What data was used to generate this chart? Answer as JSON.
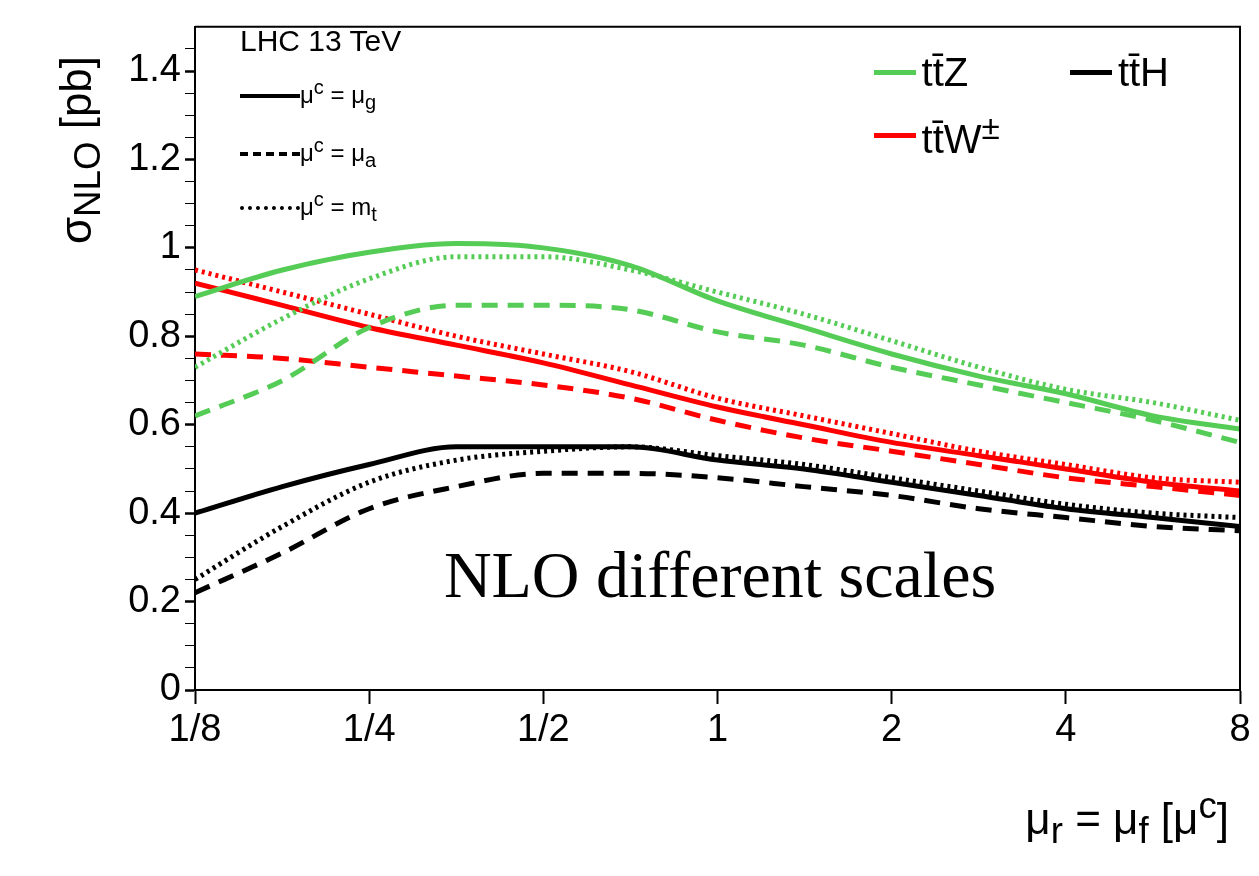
{
  "chart_data": {
    "type": "line",
    "ylabel": "σ$_{NLO}$ [pb]",
    "xlabel": "μ$_{r}$ = μ$_{f}$ [μ$^{c}$]",
    "annotations": [
      "LHC 13 TeV",
      "μ$^{c}$ = μ$_{g}$",
      "μ$^{c}$ = μ$_{a}$",
      "μ$^{c}$ = m$_{t}$",
      "NLO different scales"
    ],
    "log": "x",
    "xlim": [
      0.125,
      8
    ],
    "ylim": [
      0,
      1.5
    ],
    "xticks": [
      {
        "value": 0.125,
        "label": "1/8"
      },
      {
        "value": 0.25,
        "label": "1/4"
      },
      {
        "value": 0.5,
        "label": "1/2"
      },
      1,
      2,
      4,
      8
    ],
    "yticks": [
      0,
      {
        "value": 0.05,
        "label": null
      },
      {
        "value": 0.1,
        "label": null
      },
      {
        "value": 0.15,
        "label": null
      },
      0.2,
      {
        "value": 0.25,
        "label": null
      },
      {
        "value": 0.3,
        "label": null
      },
      {
        "value": 0.35,
        "label": null
      },
      0.4,
      {
        "value": 0.45,
        "label": null
      },
      {
        "value": 0.5,
        "label": null
      },
      {
        "value": 0.55,
        "label": null
      },
      0.6,
      {
        "value": 0.65,
        "label": null
      },
      {
        "value": 0.7,
        "label": null
      },
      {
        "value": 0.75,
        "label": null
      },
      0.8,
      {
        "value": 0.85,
        "label": null
      },
      {
        "value": 0.9,
        "label": null
      },
      {
        "value": 0.95,
        "label": null
      },
      1,
      {
        "value": 1.05,
        "label": null
      },
      {
        "value": 1.1,
        "label": null
      },
      {
        "value": 1.15,
        "label": null
      },
      1.2,
      {
        "value": 1.25,
        "label": null
      },
      {
        "value": 1.3,
        "label": null
      },
      {
        "value": 1.35,
        "label": null
      },
      1.4,
      {
        "value": 1.45,
        "label": null
      }
    ],
    "grid": false,
    "legend": "top right",
    "marker": "none",
    "x": [
      0.125,
      0.177,
      0.25,
      0.354,
      0.5,
      0.707,
      1,
      1.41,
      2,
      2.83,
      4,
      5.66,
      8
    ],
    "series": [
      {
        "name": "tt̄Z",
        "color": "#55cc55",
        "line_style": "solid",
        "values": [
          0.89,
          0.95,
          0.99,
          1.01,
          1.0,
          0.96,
          0.88,
          0.82,
          0.76,
          0.71,
          0.67,
          0.62,
          0.59
        ]
      },
      {
        "color": "#55cc55",
        "line_style": "dashed",
        "values": [
          0.62,
          0.7,
          0.82,
          0.87,
          0.87,
          0.86,
          0.81,
          0.78,
          0.73,
          0.69,
          0.65,
          0.61,
          0.56
        ]
      },
      {
        "color": "#55cc55",
        "line_style": "dotted",
        "values": [
          0.73,
          0.84,
          0.93,
          0.98,
          0.98,
          0.95,
          0.9,
          0.85,
          0.79,
          0.73,
          0.68,
          0.65,
          0.61
        ]
      },
      {
        "name": "tt̄W$^{±}$",
        "color": "#ff0000",
        "line_style": "solid",
        "values": [
          0.92,
          0.87,
          0.82,
          0.78,
          0.74,
          0.69,
          0.64,
          0.6,
          0.56,
          0.53,
          0.5,
          0.47,
          0.45
        ]
      },
      {
        "color": "#ff0000",
        "line_style": "dashed",
        "values": [
          0.76,
          0.75,
          0.73,
          0.71,
          0.69,
          0.66,
          0.61,
          0.57,
          0.54,
          0.51,
          0.48,
          0.46,
          0.44
        ]
      },
      {
        "color": "#ff0000",
        "line_style": "dotted",
        "values": [
          0.95,
          0.9,
          0.85,
          0.8,
          0.76,
          0.72,
          0.66,
          0.62,
          0.58,
          0.54,
          0.51,
          0.48,
          0.47
        ]
      },
      {
        "name": "tt̄H",
        "color": "#000000",
        "line_style": "solid",
        "values": [
          0.4,
          0.46,
          0.51,
          0.55,
          0.55,
          0.55,
          0.52,
          0.5,
          0.47,
          0.44,
          0.41,
          0.39,
          0.37
        ]
      },
      {
        "color": "#000000",
        "line_style": "dashed",
        "values": [
          0.22,
          0.31,
          0.41,
          0.46,
          0.49,
          0.49,
          0.48,
          0.46,
          0.44,
          0.41,
          0.39,
          0.37,
          0.36
        ]
      },
      {
        "color": "#000000",
        "line_style": "dotted",
        "values": [
          0.25,
          0.37,
          0.47,
          0.52,
          0.54,
          0.55,
          0.53,
          0.51,
          0.48,
          0.45,
          0.42,
          0.4,
          0.39
        ]
      }
    ]
  }
}
